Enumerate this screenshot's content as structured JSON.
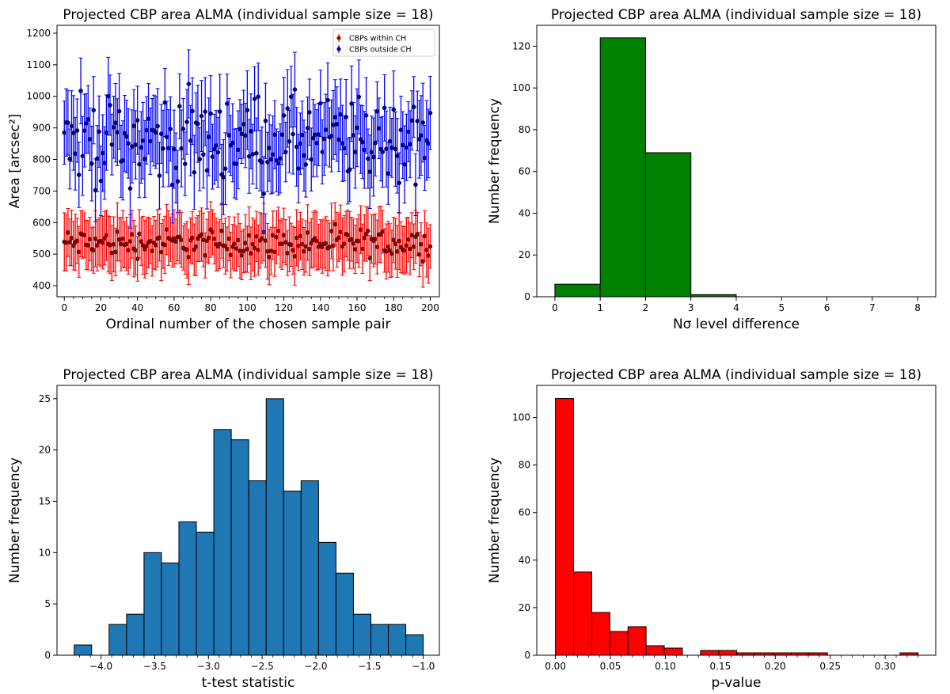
{
  "chart_data": [
    {
      "type": "scatter",
      "title": "Projected CBP area ALMA (individual sample size = 18)",
      "xlabel": "Ordinal number of the chosen sample pair",
      "ylabel": "Area [arcsec²]",
      "xlim": [
        -4,
        205
      ],
      "ylim": [
        365,
        1225
      ],
      "xticks": [
        0,
        20,
        40,
        60,
        80,
        100,
        120,
        140,
        160,
        180,
        200
      ],
      "yticks": [
        400,
        500,
        600,
        700,
        800,
        900,
        1000,
        1100,
        1200
      ],
      "legend": {
        "placement": "top-right",
        "entries": [
          "CBPs within CH",
          "CBPs outside CH"
        ]
      },
      "series": [
        {
          "name": "CBPs within CH",
          "color": "#ff0000",
          "marker_color": "#8b0000",
          "n_points": 201,
          "x_start": 0,
          "x_step": 1,
          "mean_value": 545,
          "value_spread": [
            470,
            600
          ],
          "error_bar_half_width": 80
        },
        {
          "name": "CBPs outside CH",
          "color": "#0000ff",
          "marker_color": "#00008b",
          "n_points": 201,
          "x_start": 0,
          "x_step": 1,
          "mean_value": 860,
          "value_spread": [
            660,
            1065
          ],
          "error_bar_half_width": 110
        }
      ]
    },
    {
      "type": "bar",
      "title": "Projected CBP area ALMA (individual sample size = 18)",
      "xlabel": "Nσ level difference",
      "ylabel": "Number frequency",
      "color": "#008000",
      "xlim": [
        -0.4,
        8.4
      ],
      "ylim": [
        0,
        130
      ],
      "xticks": [
        0,
        1,
        2,
        3,
        4,
        5,
        6,
        7,
        8
      ],
      "yticks": [
        0,
        20,
        40,
        60,
        80,
        100,
        120
      ],
      "bin_edges": [
        0,
        1,
        2,
        3,
        4,
        5,
        6,
        7,
        8
      ],
      "values": [
        6,
        124,
        69,
        1,
        0,
        0,
        0,
        0
      ]
    },
    {
      "type": "bar",
      "title": "Projected CBP area ALMA (individual sample size = 18)",
      "xlabel": "t-test statistic",
      "ylabel": "Number frequency",
      "color": "#1f77b4",
      "xlim": [
        -4.41,
        -0.85
      ],
      "ylim": [
        0,
        26.3
      ],
      "xticks": [
        -4.0,
        -3.5,
        -3.0,
        -2.5,
        -2.0,
        -1.5,
        -1.0
      ],
      "xtick_labels": [
        "−4.0",
        "−3.5",
        "−3.0",
        "−2.5",
        "−2.0",
        "−1.5",
        "−1.0"
      ],
      "yticks": [
        0,
        5,
        10,
        15,
        20,
        25
      ],
      "bin_start": -4.25,
      "bin_width": 0.1625,
      "values": [
        1,
        0,
        3,
        4,
        10,
        9,
        13,
        12,
        22,
        21,
        17,
        25,
        16,
        17,
        11,
        8,
        4,
        3,
        3,
        2
      ]
    },
    {
      "type": "bar",
      "title": "Projected CBP area ALMA (individual sample size = 18)",
      "xlabel": "p-value",
      "ylabel": "Number frequency",
      "color": "#ff0000",
      "xlim": [
        -0.017,
        0.346
      ],
      "ylim": [
        0,
        113.5
      ],
      "xticks": [
        0.0,
        0.05,
        0.1,
        0.15,
        0.2,
        0.25,
        0.3
      ],
      "xtick_labels": [
        "0.00",
        "0.05",
        "0.10",
        "0.15",
        "0.20",
        "0.25",
        "0.30"
      ],
      "yticks": [
        0,
        20,
        40,
        60,
        80,
        100
      ],
      "bin_start": 0.0,
      "bin_width": 0.0165,
      "values": [
        108,
        35,
        18,
        10,
        12,
        4,
        3,
        0,
        2,
        2,
        1,
        1,
        1,
        1,
        1,
        0,
        0,
        0,
        0,
        1
      ]
    }
  ]
}
